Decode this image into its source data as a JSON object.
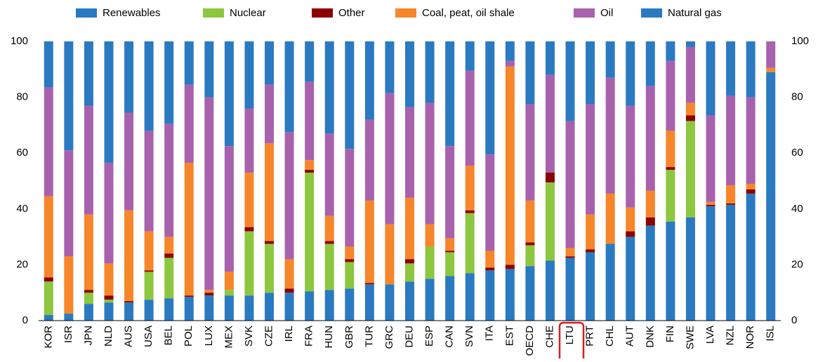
{
  "chart_data": {
    "type": "stacked-bar",
    "categories": [
      "KOR",
      "ISR",
      "JPN",
      "NLD",
      "AUS",
      "USA",
      "BEL",
      "POL",
      "LUX",
      "MEX",
      "SVK",
      "CZE",
      "IRL",
      "FRA",
      "HUN",
      "GBR",
      "TUR",
      "GRC",
      "DEU",
      "ESP",
      "CAN",
      "SVN",
      "ITA",
      "EST",
      "OECD",
      "CHE",
      "LTU",
      "PRT",
      "CHL",
      "AUT",
      "DNK",
      "FIN",
      "SWE",
      "LVA",
      "NZL",
      "NOR",
      "ISL"
    ],
    "series": [
      {
        "name": "Renewables",
        "color": "#2a7ac1",
        "values": [
          2,
          2.5,
          6,
          6.5,
          6.5,
          7.5,
          8,
          8.5,
          9,
          9,
          9,
          10,
          10,
          10.5,
          11,
          11.5,
          13,
          13,
          14,
          15,
          16,
          17,
          18,
          18.5,
          19.5,
          21.5,
          22.5,
          24.5,
          27.5,
          30,
          34,
          35.5,
          37,
          41,
          41.5,
          45.5,
          89
        ]
      },
      {
        "name": "Nuclear",
        "color": "#8dc63f",
        "values": [
          12,
          0,
          4,
          1,
          0,
          10,
          14.5,
          0,
          0,
          2,
          23,
          17.5,
          0,
          42.5,
          16.5,
          9.5,
          0,
          0,
          6.5,
          11.5,
          8.5,
          21.5,
          0,
          0,
          7.5,
          28,
          0,
          0,
          0,
          0,
          0,
          18.5,
          34.5,
          0,
          0,
          0,
          0
        ]
      },
      {
        "name": "Other",
        "color": "#8b0000",
        "values": [
          1.5,
          0,
          1,
          1.5,
          0.5,
          0.5,
          1.5,
          0.5,
          1,
          0,
          1.5,
          1,
          1.5,
          1,
          1,
          1,
          0.5,
          0,
          1.5,
          0,
          0.5,
          1,
          1,
          1.5,
          1,
          3.5,
          0.5,
          1,
          0,
          2,
          3,
          1,
          2,
          0.5,
          0.5,
          1.5,
          0
        ]
      },
      {
        "name": "Coal, peat, oil shale",
        "color": "#f7862a",
        "values": [
          29,
          20.5,
          27,
          11.5,
          32.5,
          14,
          6,
          47.5,
          1,
          6.5,
          19.5,
          35,
          10.5,
          3.5,
          9,
          4.5,
          29.5,
          21.5,
          22,
          8,
          4.5,
          16,
          6,
          71,
          15,
          0,
          3,
          12.5,
          18,
          8.5,
          9.5,
          13,
          4.5,
          1,
          6.5,
          2,
          1.5
        ]
      },
      {
        "name": "Oil",
        "color": "#a862ad",
        "values": [
          39,
          38,
          39,
          36,
          35,
          36,
          40.5,
          28,
          69,
          45,
          23,
          21,
          45.5,
          28,
          29.5,
          35,
          29,
          47,
          32.5,
          43.5,
          33,
          34,
          34.5,
          2,
          34.5,
          35,
          45.5,
          39.5,
          41.5,
          36.5,
          37.5,
          25,
          20,
          31,
          32,
          31,
          9.5
        ]
      },
      {
        "name": "Natural gas",
        "color": "#2a7ac1",
        "values": [
          16.5,
          39,
          23,
          43.5,
          25.5,
          32,
          29.5,
          15.5,
          20,
          37.5,
          24,
          15.5,
          32.5,
          14.5,
          33,
          38.5,
          28,
          18.5,
          23.5,
          22,
          37.5,
          10.5,
          40.5,
          7,
          22.5,
          12,
          28.5,
          22.5,
          13,
          23,
          16,
          7,
          2,
          26.5,
          19.5,
          20,
          0
        ]
      }
    ],
    "ylim": [
      0,
      100
    ],
    "yticks": [
      0,
      20,
      40,
      60,
      80,
      100
    ],
    "legend": "top"
  }
}
